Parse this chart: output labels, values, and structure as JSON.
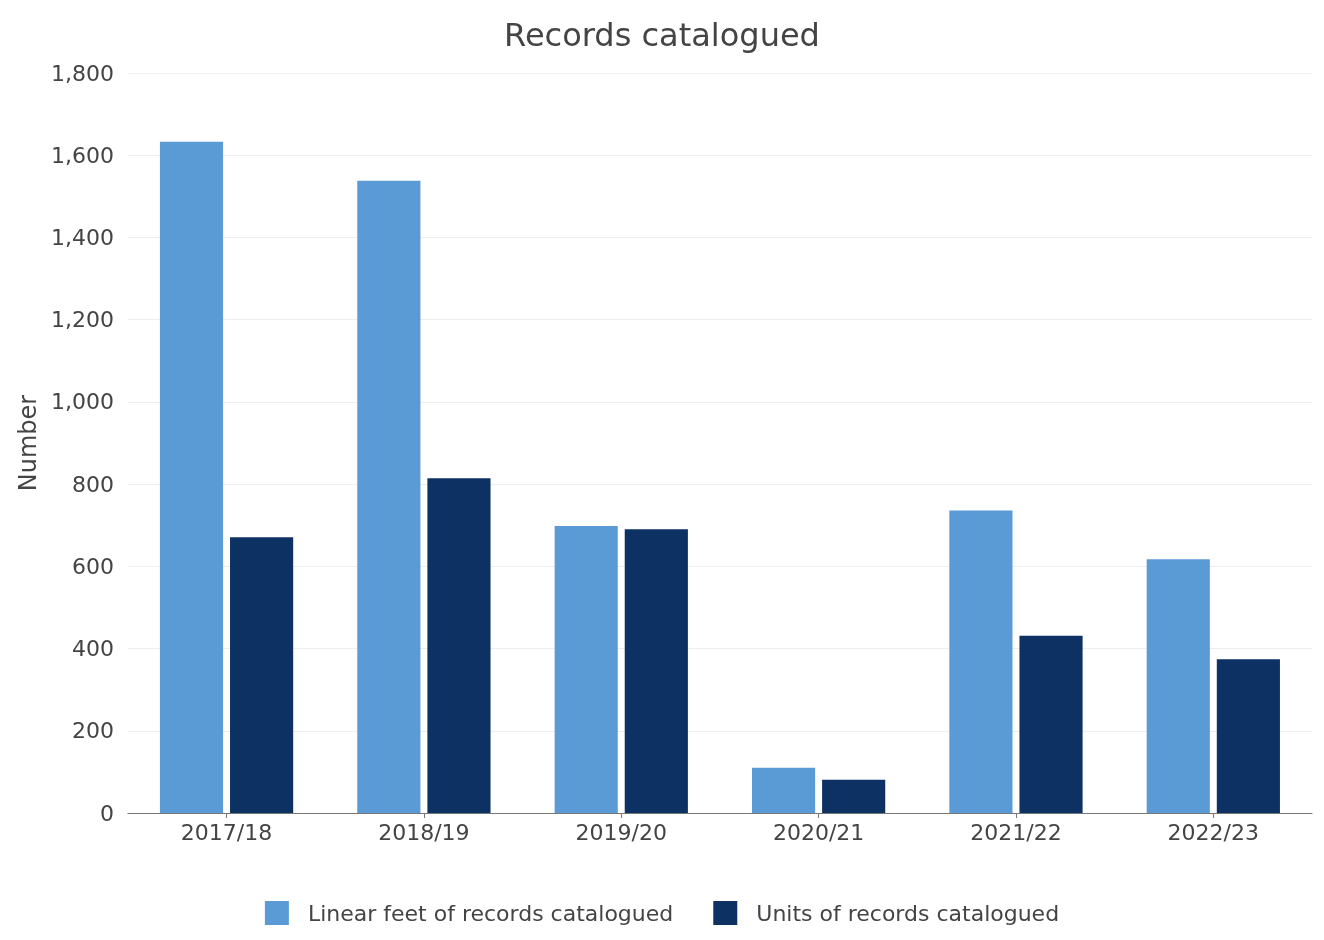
{
  "chart_data": {
    "type": "bar",
    "title": "Records catalogued",
    "ylabel": "Number",
    "categories": [
      "2017/18",
      "2018/19",
      "2019/20",
      "2020/21",
      "2021/22",
      "2022/23"
    ],
    "series": [
      {
        "name": "Linear feet of records catalogued",
        "color": "#5b9bd5",
        "values": [
          1633,
          1538,
          698,
          110,
          736,
          617
        ]
      },
      {
        "name": "Units of records catalogued",
        "color": "#0d3163",
        "values": [
          671,
          814,
          690,
          81,
          431,
          374
        ]
      }
    ],
    "ylim": [
      0,
      1800
    ],
    "yticks": [
      0,
      200,
      400,
      600,
      800,
      {
        "value": 1000,
        "label": "1,000"
      },
      {
        "value": 1200,
        "label": "1,200"
      },
      {
        "value": 1400,
        "label": "1,400"
      },
      {
        "value": 1600,
        "label": "1,600"
      },
      {
        "value": 1800,
        "label": "1,800"
      }
    ],
    "grid": "y",
    "legend": "bottom"
  }
}
